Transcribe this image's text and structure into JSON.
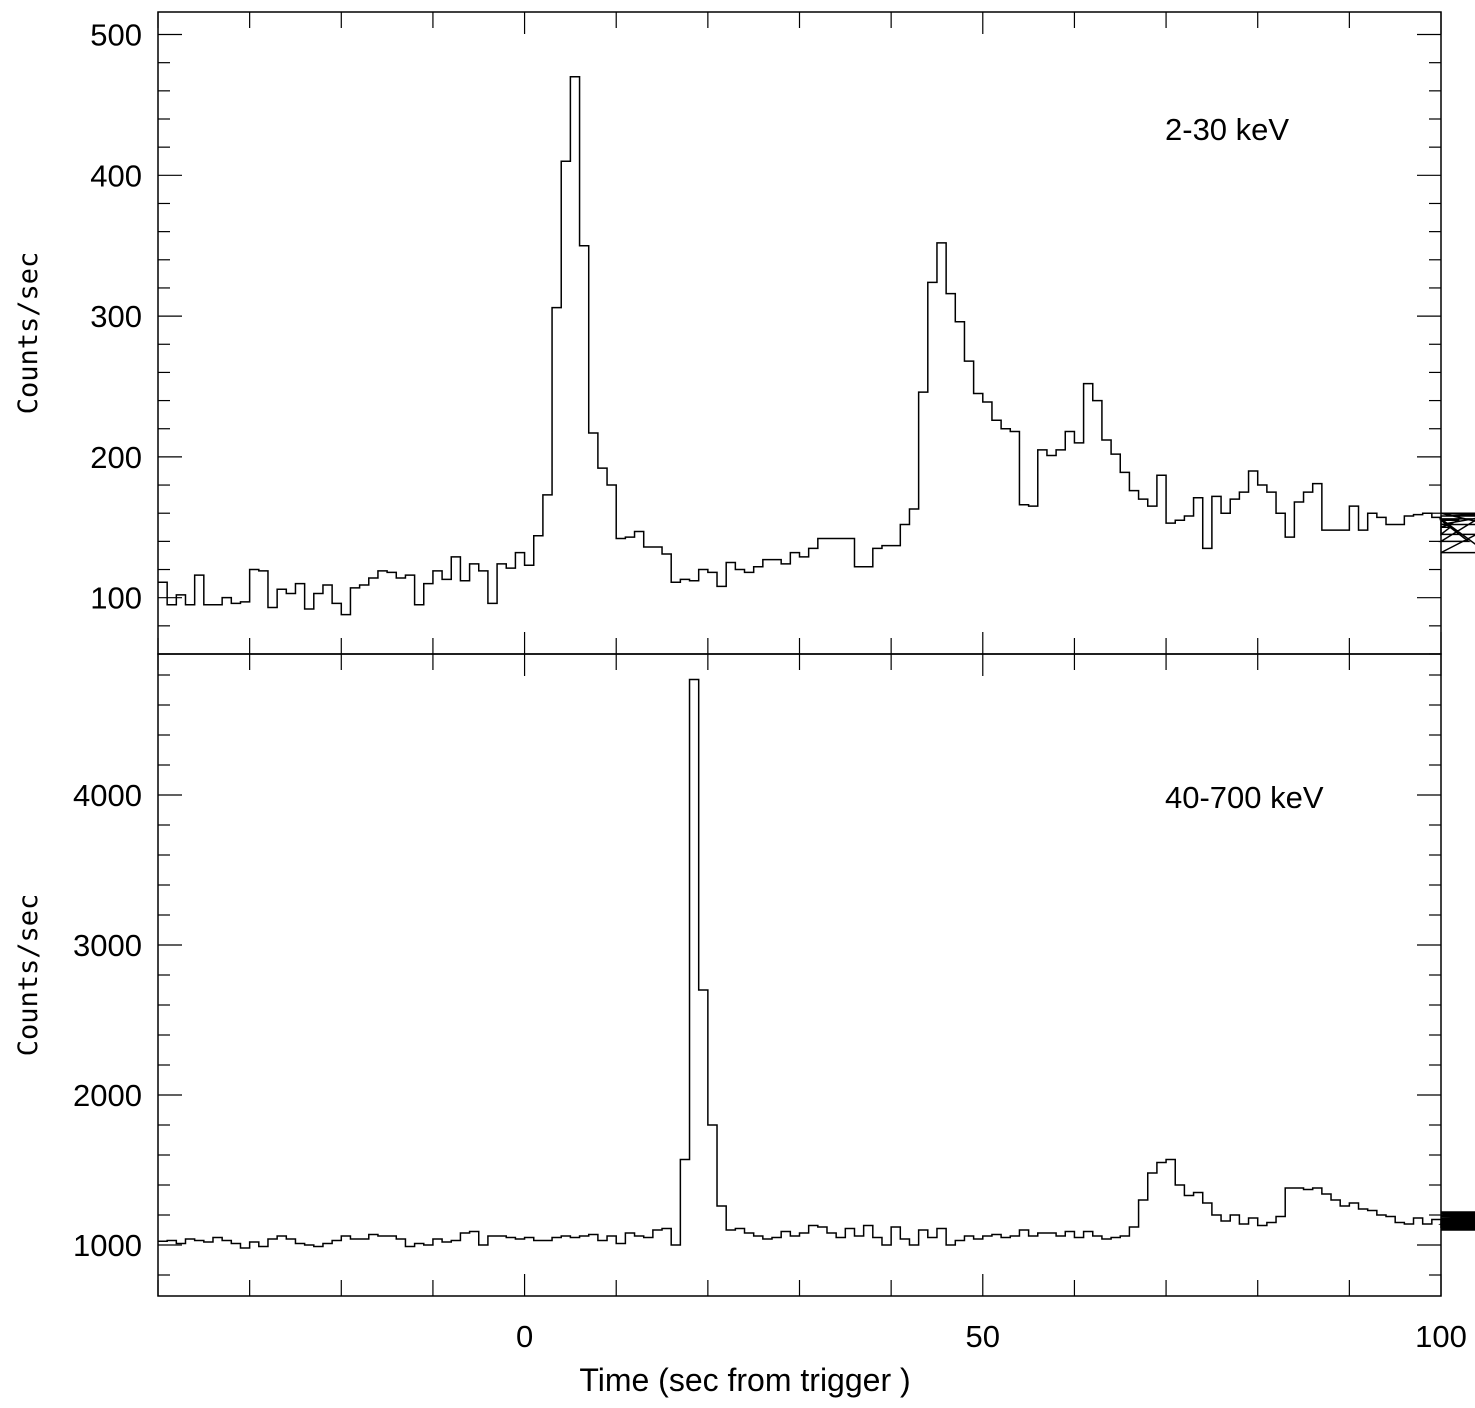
{
  "chart_data": [
    {
      "type": "line",
      "step": true,
      "ylabel": "Counts/sec",
      "annotation": "2-30 keV",
      "xlim": [
        -40,
        100
      ],
      "ylim": [
        60,
        516
      ],
      "yticks": [
        100,
        200,
        300,
        400,
        500
      ],
      "ytick_labels": [
        "100",
        "200",
        "300",
        "400",
        "500"
      ],
      "minor_ystep": 20,
      "bin_width": 1,
      "x_start": -40,
      "values": [
        111,
        95,
        102,
        95,
        116,
        95,
        95,
        100,
        96,
        97,
        120,
        119,
        93,
        106,
        103,
        110,
        92,
        103,
        109,
        96,
        88,
        107,
        109,
        114,
        119,
        118,
        114,
        116,
        95,
        110,
        119,
        113,
        129,
        112,
        124,
        119,
        96,
        124,
        121,
        132,
        123,
        144,
        173,
        306,
        410,
        470,
        350,
        217,
        192,
        180,
        142,
        143,
        147,
        136,
        136,
        131,
        111,
        113,
        112,
        120,
        118,
        108,
        125,
        120,
        118,
        122,
        127,
        127,
        124,
        132,
        129,
        135,
        142,
        142,
        142,
        142,
        122,
        122,
        135,
        137,
        137,
        152,
        163,
        246,
        324,
        352,
        316,
        296,
        268,
        245,
        239,
        226,
        220,
        218,
        166,
        165,
        205,
        201,
        205,
        218,
        210,
        252,
        240,
        212,
        202,
        189,
        176,
        170,
        165,
        187,
        153,
        155,
        158,
        171,
        135,
        172,
        160,
        170,
        175,
        190,
        180,
        175,
        160,
        143,
        168,
        175,
        181,
        148,
        148,
        148,
        165,
        148,
        160,
        157,
        152,
        152,
        158,
        159,
        160,
        157,
        145,
        150,
        155,
        140,
        156,
        132,
        152,
        160,
        158,
        160,
        145
      ]
    },
    {
      "type": "line",
      "step": true,
      "ylabel": "Counts/sec",
      "xlabel": "Time (sec from trigger )",
      "annotation": "40-700 keV",
      "xlim": [
        -40,
        100
      ],
      "xticks": [
        0,
        50,
        100
      ],
      "xtick_labels": [
        "0",
        "50",
        "100"
      ],
      "minor_xstep": 10,
      "ylim": [
        660,
        4940
      ],
      "yticks": [
        1000,
        2000,
        3000,
        4000
      ],
      "ytick_labels": [
        "1000",
        "2000",
        "3000",
        "4000"
      ],
      "minor_ystep": 200,
      "bin_width": 1,
      "x_start": -40,
      "values": [
        1025,
        1030,
        1010,
        1040,
        1030,
        1020,
        1050,
        1030,
        1010,
        980,
        1020,
        990,
        1040,
        1060,
        1040,
        1010,
        1000,
        990,
        1010,
        1030,
        1060,
        1040,
        1040,
        1070,
        1060,
        1060,
        1040,
        990,
        1010,
        1000,
        1040,
        1020,
        1030,
        1080,
        1090,
        1000,
        1060,
        1060,
        1050,
        1040,
        1050,
        1030,
        1030,
        1050,
        1060,
        1050,
        1060,
        1070,
        1030,
        1060,
        1010,
        1080,
        1060,
        1050,
        1100,
        1110,
        1000,
        1570,
        4770,
        2700,
        1800,
        1260,
        1100,
        1110,
        1080,
        1060,
        1040,
        1050,
        1090,
        1060,
        1080,
        1130,
        1120,
        1080,
        1050,
        1110,
        1060,
        1130,
        1050,
        1000,
        1120,
        1040,
        1000,
        1100,
        1050,
        1110,
        1000,
        1030,
        1060,
        1040,
        1060,
        1070,
        1050,
        1060,
        1100,
        1060,
        1080,
        1080,
        1060,
        1090,
        1050,
        1090,
        1060,
        1040,
        1050,
        1060,
        1120,
        1300,
        1480,
        1550,
        1570,
        1400,
        1330,
        1350,
        1280,
        1200,
        1160,
        1200,
        1140,
        1180,
        1130,
        1150,
        1190,
        1380,
        1380,
        1370,
        1380,
        1340,
        1300,
        1260,
        1280,
        1240,
        1230,
        1200,
        1190,
        1150,
        1140,
        1180,
        1140,
        1170,
        1120,
        1140,
        1210,
        1220,
        1150,
        1100,
        1160,
        1200,
        1210,
        1180,
        1150,
        1130,
        1110,
        1100,
        1140,
        1160,
        1190,
        1220,
        1210,
        1170,
        1160,
        1140,
        1180,
        1160,
        1130,
        1170,
        1140,
        1130,
        1100,
        1140,
        1160,
        1160,
        1150,
        1150,
        1120,
        1130,
        1150,
        1140,
        1120,
        1120,
        1160,
        1130,
        1110,
        1140,
        1150,
        1140,
        1110,
        1150,
        1120,
        1130,
        1100,
        1150,
        1140,
        1130,
        1150,
        1180,
        1130,
        1140,
        1170,
        1140,
        1110,
        1150,
        1200,
        1160,
        1150,
        1150,
        1160,
        1150,
        1140,
        1160,
        1180,
        1130,
        1150,
        1190,
        1140,
        1170,
        1150,
        1160,
        1140,
        1180,
        1150,
        1160,
        1170,
        1150,
        1140,
        1160,
        1150,
        1160,
        1170,
        1140,
        1200,
        1150,
        1160,
        1140,
        1150,
        1130,
        1170,
        1150,
        1140
      ]
    }
  ]
}
